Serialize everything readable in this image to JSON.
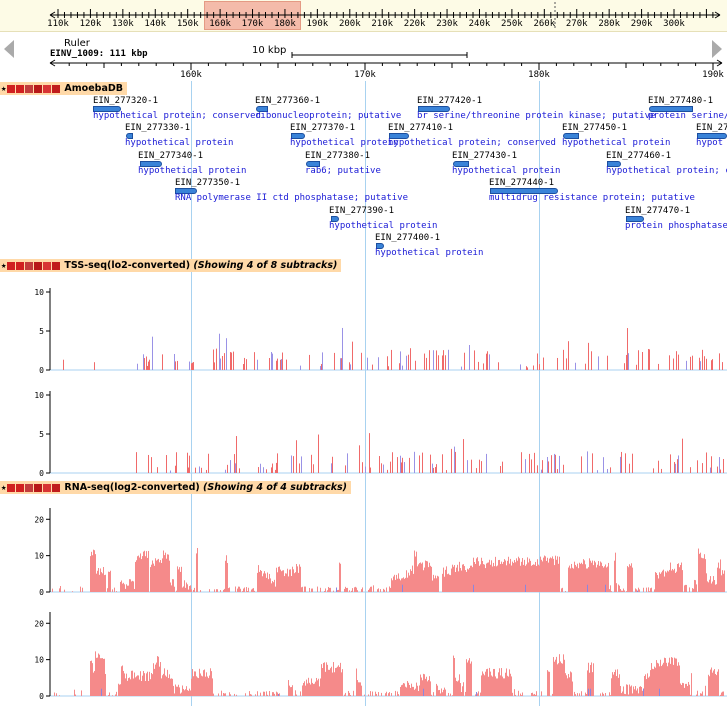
{
  "overview": {
    "labels": [
      "110k",
      "120k",
      "130k",
      "140k",
      "150k",
      "160k",
      "170k",
      "180k",
      "190k",
      "200k",
      "210k",
      "220k",
      "230k",
      "240k",
      "250k",
      "260k",
      "270k",
      "280k",
      "290k",
      "300k"
    ],
    "label_start_k": 110,
    "label_end_k": 300,
    "window_start_k": 155,
    "window_end_k": 185
  },
  "ruler": {
    "title": "Ruler",
    "seq_info": "EINV_1009: 111 kbp",
    "scalebar_label": "10 kbp",
    "ticks": [
      "160k",
      "170k",
      "180k",
      "190k"
    ]
  },
  "tracks": {
    "genes": {
      "title": "AmoebaDB"
    },
    "tss": {
      "title_plain": "TSS-seq(lo2-converted) ",
      "title_italic": "(Showing 4 of 8 subtracks)",
      "ylabels": [
        "10",
        "5",
        "0"
      ]
    },
    "rna": {
      "title_plain": "RNA-seq(log2-converted) ",
      "title_italic": "(Showing 4 of 4 subtracks)",
      "ylabels": [
        "20",
        "10",
        "0"
      ]
    }
  },
  "genes": [
    {
      "id": "EIN_277320-1",
      "desc": "hypothetical protein;  conserved"
    },
    {
      "id": "EIN_277330-1",
      "desc": "hypothetical protein"
    },
    {
      "id": "EIN_277340-1",
      "desc": "hypothetical protein"
    },
    {
      "id": "EIN_277350-1",
      "desc": "RNA polymerase II ctd phosphatase;  putative"
    },
    {
      "id": "EIN_277360-1",
      "desc": "ribonucleoprotein;  putative"
    },
    {
      "id": "EIN_277370-1",
      "desc": "hypothetical protein"
    },
    {
      "id": "EIN_277380-1",
      "desc": "rab6;  putative"
    },
    {
      "id": "EIN_277390-1",
      "desc": "hypothetical protein"
    },
    {
      "id": "EIN_277400-1",
      "desc": "hypothetical protein"
    },
    {
      "id": "EIN_277410-1",
      "desc": "hypothetical protein;  conserved"
    },
    {
      "id": "EIN_277420-1",
      "desc": "br serine/threonine protein kinase;  putative"
    },
    {
      "id": "EIN_277430-1",
      "desc": "hypothetical protein"
    },
    {
      "id": "EIN_277440-1",
      "desc": "multidrug resistance protein;  putative"
    },
    {
      "id": "EIN_277450-1",
      "desc": "hypothetical protein"
    },
    {
      "id": "EIN_277460-1",
      "desc": "hypothetical protein;  c"
    },
    {
      "id": "EIN_277470-1",
      "desc": "protein phosphatase-"
    },
    {
      "id": "EIN_277480-1",
      "desc": "protein serine/t"
    },
    {
      "id": "EIN_27",
      "desc": "hypot"
    }
  ],
  "colors": {
    "tss_pos": "#f06a6a",
    "tss_neg": "#9a92e6",
    "rna": "#f58a8a",
    "rna_neg": "#8a86e0",
    "gene": "#3a83d8",
    "text_blue": "#1a1ad6",
    "guide": "#a8d2f0",
    "title_bg": "#ffd9a8"
  }
}
